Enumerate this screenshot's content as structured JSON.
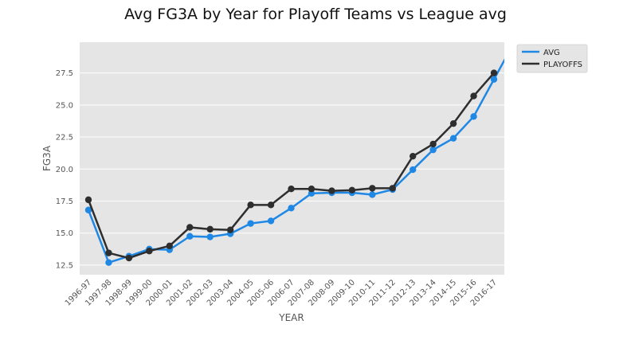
{
  "chart_data": {
    "type": "line",
    "title": "Avg FG3A by Year for Playoff Teams vs League avg",
    "xlabel": "YEAR",
    "ylabel": "FG3A",
    "categories": [
      "1996-97",
      "1997-98",
      "1998-99",
      "1999-00",
      "2000-01",
      "2001-02",
      "2002-03",
      "2003-04",
      "2004-05",
      "2005-06",
      "2006-07",
      "2007-08",
      "2008-09",
      "2009-10",
      "2010-11",
      "2011-12",
      "2012-13",
      "2013-14",
      "2014-15",
      "2015-16",
      "2016-17"
    ],
    "yticks": [
      "12.5",
      "15.0",
      "17.5",
      "20.0",
      "22.5",
      "25.0",
      "27.5"
    ],
    "ylim": [
      11.75,
      29.9
    ],
    "grid": true,
    "legend_position": "outside-top-right",
    "series": [
      {
        "name": "AVG",
        "color": "#1f88e5",
        "values": [
          16.8,
          12.7,
          13.2,
          13.75,
          13.7,
          14.75,
          14.7,
          14.95,
          15.75,
          15.95,
          16.95,
          18.1,
          18.15,
          18.15,
          18.0,
          18.4,
          19.95,
          21.5,
          22.4,
          24.1,
          27.0
        ]
      },
      {
        "name": "PLAYOFFS",
        "color": "#2e2e2e",
        "values": [
          17.6,
          13.45,
          13.05,
          13.6,
          14.0,
          15.45,
          15.3,
          15.25,
          17.2,
          17.2,
          18.45,
          18.45,
          18.3,
          18.35,
          18.5,
          18.5,
          21.0,
          21.95,
          23.55,
          25.7,
          27.5
        ]
      }
    ]
  }
}
